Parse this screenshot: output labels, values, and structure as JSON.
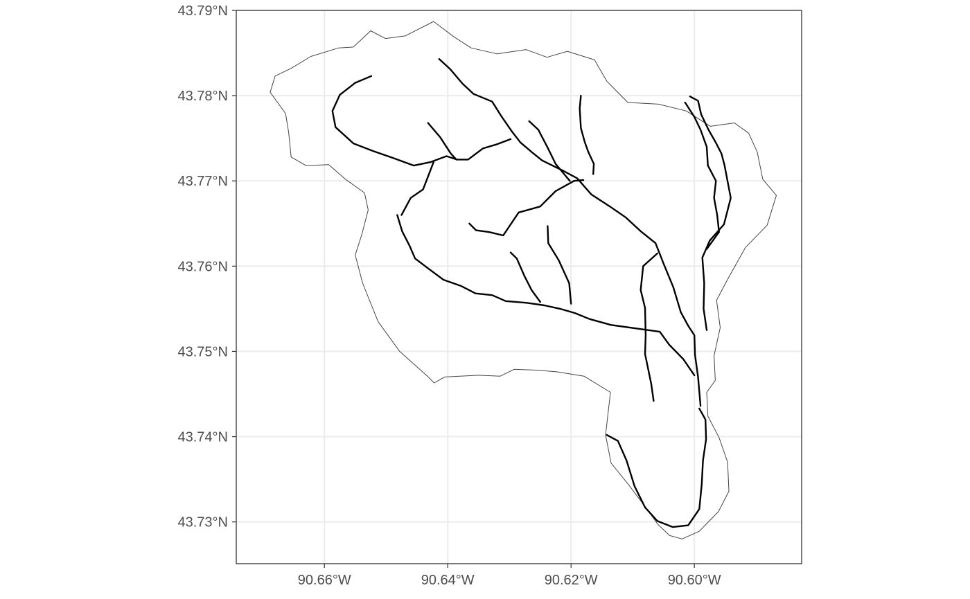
{
  "map": {
    "x_axis": {
      "ticks": [
        {
          "value": -90.66,
          "label": "90.66°W"
        },
        {
          "value": -90.64,
          "label": "90.64°W"
        },
        {
          "value": -90.62,
          "label": "90.62°W"
        },
        {
          "value": -90.6,
          "label": "90.60°W"
        }
      ],
      "range": [
        -90.6743,
        -90.5826
      ]
    },
    "y_axis": {
      "ticks": [
        {
          "value": 43.79,
          "label": "43.79°N"
        },
        {
          "value": 43.78,
          "label": "43.78°N"
        },
        {
          "value": 43.77,
          "label": "43.77°N"
        },
        {
          "value": 43.76,
          "label": "43.76°N"
        },
        {
          "value": 43.75,
          "label": "43.75°N"
        },
        {
          "value": 43.74,
          "label": "43.74°N"
        },
        {
          "value": 43.73,
          "label": "43.73°N"
        }
      ],
      "range": [
        43.7251,
        43.79
      ]
    },
    "colors": {
      "background": "#ffffff",
      "gridline": "#ebebeb",
      "border": "#333333",
      "boundary": "#444444",
      "stream": "#000000",
      "tick_label": "#4d4d4d"
    },
    "features": {
      "watershed_boundary": {
        "type": "polygon",
        "coordinates": [
          [
            -90.6525,
            43.7876
          ],
          [
            -90.6501,
            43.7867
          ],
          [
            -90.6469,
            43.787
          ],
          [
            -90.6423,
            43.7887
          ],
          [
            -90.639,
            43.7869
          ],
          [
            -90.6362,
            43.7856
          ],
          [
            -90.632,
            43.7849
          ],
          [
            -90.6273,
            43.7854
          ],
          [
            -90.6239,
            43.7845
          ],
          [
            -90.6206,
            43.7852
          ],
          [
            -90.6162,
            43.7842
          ],
          [
            -90.6142,
            43.7817
          ],
          [
            -90.6108,
            43.7792
          ],
          [
            -90.6058,
            43.779
          ],
          [
            -90.6013,
            43.7782
          ],
          [
            -90.5974,
            43.7764
          ],
          [
            -90.5935,
            43.7768
          ],
          [
            -90.5912,
            43.7756
          ],
          [
            -90.5898,
            43.7734
          ],
          [
            -90.5889,
            43.7702
          ],
          [
            -90.5867,
            43.7683
          ],
          [
            -90.5882,
            43.7648
          ],
          [
            -90.5917,
            43.7622
          ],
          [
            -90.5945,
            43.7586
          ],
          [
            -90.5964,
            43.756
          ],
          [
            -90.5958,
            43.7528
          ],
          [
            -90.5968,
            43.7495
          ],
          [
            -90.5966,
            43.7466
          ],
          [
            -90.598,
            43.7452
          ],
          [
            -90.5978,
            43.7424
          ],
          [
            -90.596,
            43.7399
          ],
          [
            -90.5946,
            43.737
          ],
          [
            -90.5944,
            43.7336
          ],
          [
            -90.5961,
            43.7312
          ],
          [
            -90.598,
            43.7298
          ],
          [
            -90.5992,
            43.7289
          ],
          [
            -90.602,
            43.728
          ],
          [
            -90.604,
            43.7284
          ],
          [
            -90.6059,
            43.7297
          ],
          [
            -90.6082,
            43.732
          ],
          [
            -90.6106,
            43.7343
          ],
          [
            -90.6135,
            43.7369
          ],
          [
            -90.6144,
            43.7402
          ],
          [
            -90.6136,
            43.7452
          ],
          [
            -90.6179,
            43.7471
          ],
          [
            -90.6222,
            43.7476
          ],
          [
            -90.6256,
            43.7478
          ],
          [
            -90.6292,
            43.7479
          ],
          [
            -90.6315,
            43.7471
          ],
          [
            -90.635,
            43.7472
          ],
          [
            -90.6405,
            43.747
          ],
          [
            -90.6422,
            43.7463
          ],
          [
            -90.6433,
            43.7471
          ],
          [
            -90.6478,
            43.75
          ],
          [
            -90.6513,
            43.7535
          ],
          [
            -90.6538,
            43.758
          ],
          [
            -90.655,
            43.7613
          ],
          [
            -90.6539,
            43.7638
          ],
          [
            -90.6529,
            43.7666
          ],
          [
            -90.6535,
            43.7686
          ],
          [
            -90.6566,
            43.7702
          ],
          [
            -90.6593,
            43.7719
          ],
          [
            -90.663,
            43.7718
          ],
          [
            -90.6654,
            43.7728
          ],
          [
            -90.6658,
            43.7757
          ],
          [
            -90.6663,
            43.7779
          ],
          [
            -90.6688,
            43.7804
          ],
          [
            -90.668,
            43.7823
          ],
          [
            -90.6654,
            43.7832
          ],
          [
            -90.6622,
            43.7846
          ],
          [
            -90.6577,
            43.7856
          ],
          [
            -90.6553,
            43.7857
          ],
          [
            -90.6525,
            43.7876
          ]
        ]
      },
      "streams": [
        {
          "type": "line",
          "coordinates": [
            [
              -90.599,
              43.7436
            ],
            [
              -90.5994,
              43.747
            ],
            [
              -90.5999,
              43.7496
            ],
            [
              -90.6,
              43.7519
            ],
            [
              -90.601,
              43.753
            ],
            [
              -90.6022,
              43.7546
            ],
            [
              -90.6034,
              43.7575
            ],
            [
              -90.605,
              43.7603
            ],
            [
              -90.6063,
              43.7627
            ],
            [
              -90.6087,
              43.7641
            ],
            [
              -90.6111,
              43.7657
            ],
            [
              -90.6137,
              43.767
            ],
            [
              -90.6167,
              43.7684
            ],
            [
              -90.619,
              43.7703
            ],
            [
              -90.6213,
              43.7712
            ],
            [
              -90.6247,
              43.7724
            ],
            [
              -90.6264,
              43.7734
            ],
            [
              -90.6282,
              43.7745
            ],
            [
              -90.6297,
              43.7759
            ],
            [
              -90.6314,
              43.7777
            ],
            [
              -90.6328,
              43.7793
            ],
            [
              -90.6358,
              43.7802
            ],
            [
              -90.6376,
              43.7814
            ],
            [
              -90.6396,
              43.7831
            ],
            [
              -90.6414,
              43.7843
            ]
          ]
        },
        {
          "type": "line",
          "coordinates": [
            [
              -90.6298,
              43.7749
            ],
            [
              -90.632,
              43.7743
            ],
            [
              -90.6343,
              43.7738
            ],
            [
              -90.6367,
              43.7725
            ],
            [
              -90.6385,
              43.7725
            ],
            [
              -90.6402,
              43.7729
            ],
            [
              -90.6428,
              43.7722
            ],
            [
              -90.6455,
              43.7718
            ],
            [
              -90.6489,
              43.7727
            ],
            [
              -90.6521,
              43.7735
            ],
            [
              -90.6553,
              43.7744
            ],
            [
              -90.6582,
              43.7763
            ],
            [
              -90.6587,
              43.7782
            ],
            [
              -90.6575,
              43.7801
            ],
            [
              -90.655,
              43.7815
            ],
            [
              -90.6524,
              43.7823
            ]
          ]
        },
        {
          "type": "line",
          "coordinates": [
            [
              -90.6432,
              43.7768
            ],
            [
              -90.6412,
              43.7751
            ],
            [
              -90.6395,
              43.7732
            ],
            [
              -90.6386,
              43.7725
            ]
          ]
        },
        {
          "type": "line",
          "coordinates": [
            [
              -90.6423,
              43.7722
            ],
            [
              -90.644,
              43.769
            ],
            [
              -90.646,
              43.768
            ],
            [
              -90.6475,
              43.766
            ]
          ]
        },
        {
          "type": "line",
          "coordinates": [
            [
              -90.618,
              43.7701
            ],
            [
              -90.6195,
              43.77
            ],
            [
              -90.6225,
              43.7688
            ],
            [
              -90.625,
              43.767
            ],
            [
              -90.6285,
              43.7663
            ],
            [
              -90.631,
              43.7636
            ],
            [
              -90.6333,
              43.764
            ],
            [
              -90.6354,
              43.7642
            ],
            [
              -90.6365,
              43.765
            ]
          ]
        },
        {
          "type": "line",
          "coordinates": [
            [
              -90.6202,
              43.77
            ],
            [
              -90.6225,
              43.772
            ],
            [
              -90.6238,
              43.7739
            ],
            [
              -90.6253,
              43.776
            ],
            [
              -90.6268,
              43.777
            ]
          ]
        },
        {
          "type": "line",
          "coordinates": [
            [
              -90.6164,
              43.7708
            ],
            [
              -90.6163,
              43.772
            ],
            [
              -90.6172,
              43.7734
            ],
            [
              -90.6178,
              43.7746
            ],
            [
              -90.6184,
              43.7762
            ],
            [
              -90.6186,
              43.7785
            ],
            [
              -90.6184,
              43.78
            ]
          ]
        },
        {
          "type": "line",
          "coordinates": [
            [
              -90.606,
              43.7615
            ],
            [
              -90.6083,
              43.76
            ],
            [
              -90.6087,
              43.7572
            ],
            [
              -90.608,
              43.7551
            ],
            [
              -90.6079,
              43.7519
            ],
            [
              -90.608,
              43.7497
            ],
            [
              -90.607,
              43.7462
            ],
            [
              -90.6066,
              43.7442
            ]
          ]
        },
        {
          "type": "line",
          "coordinates": [
            [
              -90.598,
              43.762
            ],
            [
              -90.596,
              43.764
            ],
            [
              -90.5963,
              43.766
            ],
            [
              -90.5968,
              43.768
            ],
            [
              -90.5965,
              43.77
            ],
            [
              -90.5978,
              43.7718
            ],
            [
              -90.598,
              43.774
            ],
            [
              -90.599,
              43.776
            ],
            [
              -90.6,
              43.7775
            ],
            [
              -90.6015,
              43.7792
            ]
          ]
        },
        {
          "type": "line",
          "coordinates": [
            [
              -90.598,
              43.7525
            ],
            [
              -90.5985,
              43.755
            ],
            [
              -90.5984,
              43.758
            ],
            [
              -90.5987,
              43.761
            ],
            [
              -90.5975,
              43.763
            ],
            [
              -90.5952,
              43.7649
            ],
            [
              -90.5941,
              43.768
            ],
            [
              -90.5951,
              43.7718
            ],
            [
              -90.5956,
              43.7732
            ],
            [
              -90.5966,
              43.7746
            ],
            [
              -90.5977,
              43.776
            ],
            [
              -90.5989,
              43.7778
            ],
            [
              -90.5994,
              43.7794
            ],
            [
              -90.6007,
              43.7799
            ]
          ]
        },
        {
          "type": "line",
          "coordinates": [
            [
              -90.6,
              43.7472
            ],
            [
              -90.6018,
              43.7491
            ],
            [
              -90.6041,
              43.7508
            ],
            [
              -90.6056,
              43.7523
            ],
            [
              -90.6085,
              43.7526
            ],
            [
              -90.6135,
              43.7531
            ],
            [
              -90.617,
              43.7538
            ],
            [
              -90.6194,
              43.7545
            ],
            [
              -90.6218,
              43.755
            ],
            [
              -90.6243,
              43.7554
            ],
            [
              -90.6272,
              43.7557
            ],
            [
              -90.6306,
              43.7559
            ],
            [
              -90.6328,
              43.7566
            ],
            [
              -90.6355,
              43.7568
            ],
            [
              -90.6379,
              43.7577
            ],
            [
              -90.6407,
              43.7584
            ],
            [
              -90.6433,
              43.7598
            ],
            [
              -90.6453,
              43.7609
            ],
            [
              -90.6462,
              43.7624
            ],
            [
              -90.6474,
              43.7641
            ],
            [
              -90.6482,
              43.766
            ]
          ]
        },
        {
          "type": "line",
          "coordinates": [
            [
              -90.625,
              43.7558
            ],
            [
              -90.6264,
              43.7572
            ],
            [
              -90.6276,
              43.7589
            ],
            [
              -90.6288,
              43.7609
            ],
            [
              -90.6298,
              43.7616
            ]
          ]
        },
        {
          "type": "line",
          "coordinates": [
            [
              -90.62,
              43.7556
            ],
            [
              -90.6203,
              43.758
            ],
            [
              -90.622,
              43.7607
            ],
            [
              -90.6237,
              43.7627
            ],
            [
              -90.6238,
              43.7647
            ]
          ]
        },
        {
          "type": "line",
          "coordinates": [
            [
              -90.6142,
              43.7402
            ],
            [
              -90.6124,
              43.7395
            ],
            [
              -90.611,
              43.7372
            ],
            [
              -90.6097,
              43.7342
            ],
            [
              -90.608,
              43.7317
            ],
            [
              -90.606,
              43.7301
            ],
            [
              -90.6035,
              43.7294
            ],
            [
              -90.601,
              43.7296
            ],
            [
              -90.5992,
              43.7315
            ],
            [
              -90.5988,
              43.7344
            ],
            [
              -90.5986,
              43.7372
            ],
            [
              -90.5981,
              43.7397
            ],
            [
              -90.5982,
              43.742
            ],
            [
              -90.5992,
              43.7433
            ]
          ]
        }
      ]
    }
  }
}
